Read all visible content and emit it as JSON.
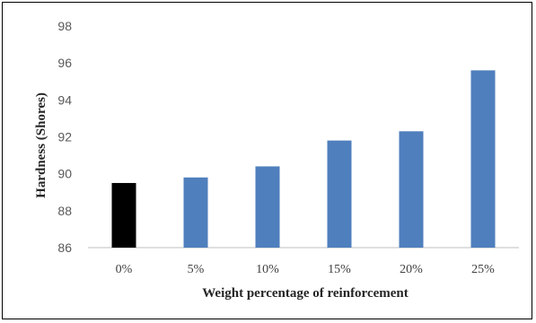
{
  "chart_data": {
    "type": "bar",
    "title": "",
    "xlabel": "Weight percentage of reinforcement",
    "ylabel": "Hardness (Shores)",
    "categories": [
      "0%",
      "5%",
      "10%",
      "15%",
      "20%",
      "25%"
    ],
    "values": [
      89.5,
      89.8,
      90.4,
      91.8,
      92.3,
      95.6
    ],
    "ylim": [
      86,
      98
    ],
    "yticks": [
      "86",
      "88",
      "90",
      "92",
      "94",
      "96",
      "98"
    ],
    "bar_colors": [
      "#000000",
      "#4f7fbd",
      "#4f7fbd",
      "#4f7fbd",
      "#4f7fbd",
      "#4f7fbd"
    ],
    "grid": false,
    "legend": "none"
  }
}
